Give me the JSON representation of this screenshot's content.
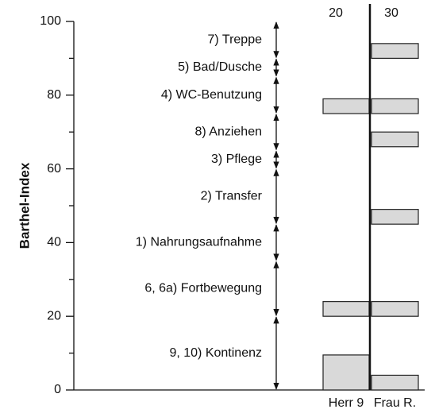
{
  "chart_data": {
    "type": "range_bar",
    "y_label": "Barthel-Index",
    "ylim": [
      0,
      100
    ],
    "yticks": [
      0,
      20,
      40,
      60,
      80,
      100
    ],
    "yticks_minor": [
      10,
      30,
      50,
      70,
      90
    ],
    "top_labels": [
      "20",
      "30"
    ],
    "categories": [
      "Herr 9",
      "Frau R."
    ],
    "color": "#d9d9d9",
    "items": [
      {
        "label": "9, 10) Kontinenz",
        "range": [
          0,
          20
        ]
      },
      {
        "label": "6, 6a) Fortbewegung",
        "range": [
          20,
          35
        ]
      },
      {
        "label": "1) Nahrungsaufnahme",
        "range": [
          35,
          45
        ]
      },
      {
        "label": "2) Transfer",
        "range": [
          45,
          60
        ]
      },
      {
        "label": "3) Pflege",
        "range": [
          60,
          65
        ]
      },
      {
        "label": "8) Anziehen",
        "range": [
          65,
          75
        ]
      },
      {
        "label": "4) WC-Benutzung",
        "range": [
          75,
          85
        ]
      },
      {
        "label": "5) Bad/Dusche",
        "range": [
          85,
          90
        ]
      },
      {
        "label": "7) Treppe",
        "range": [
          90,
          100
        ]
      }
    ],
    "series": [
      {
        "name": "Herr 9",
        "ranges": [
          [
            0,
            9.5
          ],
          [
            20,
            24
          ],
          [
            75,
            79
          ]
        ]
      },
      {
        "name": "Frau R.",
        "ranges": [
          [
            0,
            4
          ],
          [
            20,
            24
          ],
          [
            45,
            49
          ],
          [
            66,
            70
          ],
          [
            75,
            79
          ],
          [
            90,
            94
          ]
        ]
      }
    ]
  }
}
